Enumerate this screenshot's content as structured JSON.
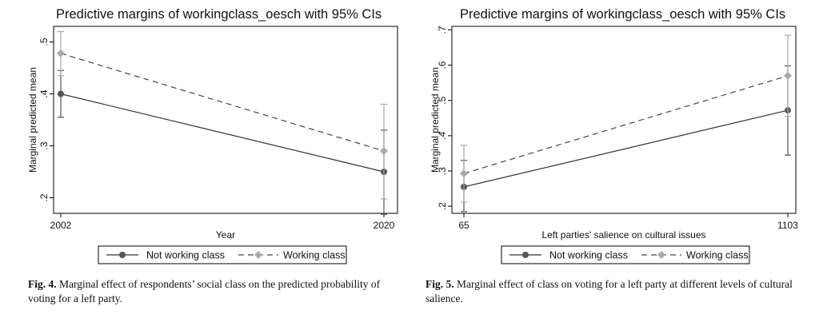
{
  "colors": {
    "not_working": "#555555",
    "working": "#aaaaaa",
    "frame": "#000000",
    "background": "#ffffff"
  },
  "chart_data": [
    {
      "type": "line",
      "title": "Predictive margins of workingclass_oesch with 95% CIs",
      "xlabel": "Year",
      "ylabel": "Marginal predicted mean",
      "categories": [
        "2002",
        "2020"
      ],
      "ylim": [
        0.17,
        0.53
      ],
      "yticks": [
        0.2,
        0.3,
        0.4,
        0.5
      ],
      "ytick_labels": [
        ".2",
        ".3",
        ".4",
        ".5"
      ],
      "series": [
        {
          "name": "Not working class",
          "style": "solid",
          "marker": "circle",
          "values": [
            0.4,
            0.25
          ],
          "ci_low": [
            0.355,
            0.168
          ],
          "ci_high": [
            0.445,
            0.33
          ]
        },
        {
          "name": "Working class",
          "style": "dashed",
          "marker": "diamond",
          "values": [
            0.478,
            0.29
          ],
          "ci_low": [
            0.435,
            0.198
          ],
          "ci_high": [
            0.52,
            0.38
          ]
        }
      ],
      "legend_position": "bottom"
    },
    {
      "type": "line",
      "title": "Predictive margins of workingclass_oesch with 95% CIs",
      "xlabel": "Left parties' salience on cultural issues",
      "ylabel": "Marginal predicted mean",
      "categories": [
        "65",
        "1103"
      ],
      "ylim": [
        0.18,
        0.71
      ],
      "yticks": [
        0.2,
        0.3,
        0.4,
        0.5,
        0.6,
        0.7
      ],
      "ytick_labels": [
        ".2",
        ".3",
        ".4",
        ".5",
        ".6",
        ".7"
      ],
      "series": [
        {
          "name": "Not working class",
          "style": "solid",
          "marker": "circle",
          "values": [
            0.255,
            0.472
          ],
          "ci_low": [
            0.185,
            0.345
          ],
          "ci_high": [
            0.33,
            0.598
          ]
        },
        {
          "name": "Working class",
          "style": "dashed",
          "marker": "diamond",
          "values": [
            0.293,
            0.57
          ],
          "ci_low": [
            0.212,
            0.455
          ],
          "ci_high": [
            0.373,
            0.685
          ]
        }
      ],
      "legend_position": "bottom"
    }
  ],
  "captions": [
    {
      "label": "Fig. 4.",
      "text": "Marginal effect of respondents’ social class on the predicted probability of voting for a left party."
    },
    {
      "label": "Fig. 5.",
      "text": "Marginal effect of class on voting for a left party at different levels of cultural salience."
    }
  ]
}
